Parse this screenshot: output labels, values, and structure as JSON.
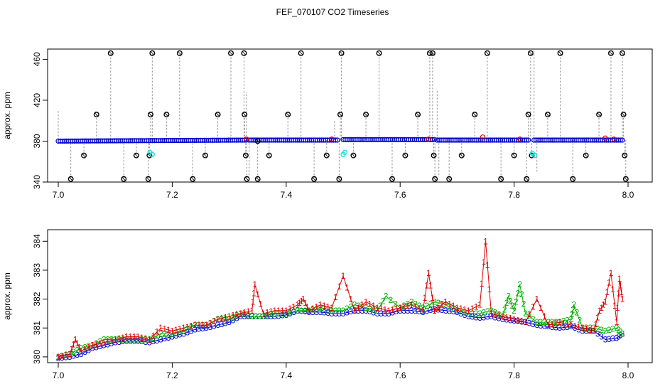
{
  "title": "FEF_070107  CO2 Timeseries",
  "colors": {
    "black": "#000000",
    "red": "#dd0000",
    "green": "#00b000",
    "blue": "#0000cc",
    "cyan": "#22dddd",
    "grey": "#888888"
  },
  "chart_data": [
    {
      "type": "scatter",
      "title": "",
      "xlabel": "",
      "ylabel": "approx. ppm",
      "xlim": [
        7.0,
        8.0
      ],
      "ylim": [
        340,
        470
      ],
      "xticks": [
        "7.0",
        "7.2",
        "7.4",
        "7.6",
        "7.8",
        "8.0"
      ],
      "yticks": [
        "340",
        "380",
        "420",
        "460"
      ],
      "baseline": [
        {
          "x0": 7.0,
          "x1": 7.33,
          "y0": 380,
          "y1": 381
        },
        {
          "x0": 7.335,
          "x1": 7.49,
          "y0": 381,
          "y1": 381
        },
        {
          "x0": 7.5,
          "x1": 7.66,
          "y0": 381.5,
          "y1": 381.5
        },
        {
          "x0": 7.665,
          "x1": 7.825,
          "y0": 381,
          "y1": 381
        },
        {
          "x0": 7.835,
          "x1": 7.99,
          "y0": 381,
          "y1": 381
        }
      ],
      "spikes": [
        {
          "x": 7.0,
          "y": 410
        },
        {
          "x": 7.33,
          "y": 428
        },
        {
          "x": 7.335,
          "y": 345
        },
        {
          "x": 7.485,
          "y": 400
        },
        {
          "x": 7.665,
          "y": 430
        },
        {
          "x": 7.668,
          "y": 345
        },
        {
          "x": 7.835,
          "y": 470
        },
        {
          "x": 7.84,
          "y": 350
        }
      ],
      "outliers": [
        {
          "x": 7.022,
          "y": 343
        },
        {
          "x": 7.045,
          "y": 366
        },
        {
          "x": 7.067,
          "y": 406
        },
        {
          "x": 7.092,
          "y": 466
        },
        {
          "x": 7.115,
          "y": 343
        },
        {
          "x": 7.137,
          "y": 366
        },
        {
          "x": 7.158,
          "y": 343
        },
        {
          "x": 7.16,
          "y": 366
        },
        {
          "x": 7.162,
          "y": 406
        },
        {
          "x": 7.165,
          "y": 466
        },
        {
          "x": 7.19,
          "y": 406
        },
        {
          "x": 7.213,
          "y": 466
        },
        {
          "x": 7.236,
          "y": 343
        },
        {
          "x": 7.258,
          "y": 366
        },
        {
          "x": 7.28,
          "y": 406
        },
        {
          "x": 7.303,
          "y": 466
        },
        {
          "x": 7.326,
          "y": 466
        },
        {
          "x": 7.327,
          "y": 406
        },
        {
          "x": 7.329,
          "y": 366
        },
        {
          "x": 7.331,
          "y": 343
        },
        {
          "x": 7.35,
          "y": 380
        },
        {
          "x": 7.35,
          "y": 343
        },
        {
          "x": 7.37,
          "y": 366
        },
        {
          "x": 7.403,
          "y": 406
        },
        {
          "x": 7.426,
          "y": 466
        },
        {
          "x": 7.449,
          "y": 343
        },
        {
          "x": 7.471,
          "y": 366
        },
        {
          "x": 7.493,
          "y": 343
        },
        {
          "x": 7.495,
          "y": 406
        },
        {
          "x": 7.497,
          "y": 466
        },
        {
          "x": 7.518,
          "y": 366
        },
        {
          "x": 7.54,
          "y": 406
        },
        {
          "x": 7.563,
          "y": 466
        },
        {
          "x": 7.586,
          "y": 343
        },
        {
          "x": 7.609,
          "y": 366
        },
        {
          "x": 7.631,
          "y": 406
        },
        {
          "x": 7.652,
          "y": 466
        },
        {
          "x": 7.657,
          "y": 466
        },
        {
          "x": 7.659,
          "y": 366
        },
        {
          "x": 7.661,
          "y": 343
        },
        {
          "x": 7.686,
          "y": 343
        },
        {
          "x": 7.708,
          "y": 366
        },
        {
          "x": 7.731,
          "y": 406
        },
        {
          "x": 7.753,
          "y": 466
        },
        {
          "x": 7.777,
          "y": 343
        },
        {
          "x": 7.8,
          "y": 366
        },
        {
          "x": 7.822,
          "y": 343
        },
        {
          "x": 7.825,
          "y": 406
        },
        {
          "x": 7.829,
          "y": 466
        },
        {
          "x": 7.831,
          "y": 366
        },
        {
          "x": 7.859,
          "y": 406
        },
        {
          "x": 7.881,
          "y": 466
        },
        {
          "x": 7.903,
          "y": 343
        },
        {
          "x": 7.926,
          "y": 366
        },
        {
          "x": 7.949,
          "y": 406
        },
        {
          "x": 7.97,
          "y": 466
        },
        {
          "x": 7.99,
          "y": 466
        },
        {
          "x": 7.992,
          "y": 406
        },
        {
          "x": 7.994,
          "y": 366
        },
        {
          "x": 7.996,
          "y": 343
        }
      ],
      "cyan_points": [
        {
          "x": 7.161,
          "y": 369
        },
        {
          "x": 7.165,
          "y": 367
        },
        {
          "x": 7.5,
          "y": 367
        },
        {
          "x": 7.503,
          "y": 369
        },
        {
          "x": 7.832,
          "y": 368
        },
        {
          "x": 7.836,
          "y": 366
        }
      ],
      "red_points": [
        {
          "x": 7.33,
          "y": 382
        },
        {
          "x": 7.48,
          "y": 382
        },
        {
          "x": 7.65,
          "y": 382
        },
        {
          "x": 7.745,
          "y": 384
        },
        {
          "x": 7.81,
          "y": 382
        },
        {
          "x": 7.96,
          "y": 383
        },
        {
          "x": 7.975,
          "y": 382
        }
      ]
    },
    {
      "type": "line",
      "title": "",
      "xlabel": "",
      "ylabel": "approx. ppm",
      "xlim": [
        7.0,
        8.0
      ],
      "ylim": [
        379.8,
        384.4
      ],
      "xticks": [
        "7.0",
        "7.2",
        "7.4",
        "7.6",
        "7.8",
        "8.0"
      ],
      "yticks": [
        "380",
        "381",
        "382",
        "383",
        "384"
      ],
      "series": [
        {
          "marker": "1",
          "color": "#dd0000",
          "x": [
            7.0,
            7.02,
            7.03,
            7.04,
            7.06,
            7.08,
            7.1,
            7.12,
            7.14,
            7.16,
            7.18,
            7.2,
            7.22,
            7.24,
            7.26,
            7.28,
            7.3,
            7.32,
            7.34,
            7.345,
            7.36,
            7.38,
            7.4,
            7.42,
            7.43,
            7.44,
            7.46,
            7.48,
            7.5,
            7.52,
            7.54,
            7.56,
            7.58,
            7.6,
            7.62,
            7.64,
            7.65,
            7.66,
            7.68,
            7.7,
            7.72,
            7.74,
            7.75,
            7.76,
            7.78,
            7.8,
            7.82,
            7.84,
            7.86,
            7.88,
            7.9,
            7.92,
            7.94,
            7.95,
            7.96,
            7.97,
            7.98,
            7.985,
            7.99
          ],
          "y": [
            380.0,
            380.1,
            380.6,
            380.2,
            380.4,
            380.5,
            380.6,
            380.7,
            380.7,
            380.6,
            381.0,
            380.9,
            381.0,
            381.1,
            381.1,
            381.3,
            381.4,
            381.5,
            381.6,
            382.5,
            381.5,
            381.6,
            381.6,
            381.8,
            382.0,
            381.6,
            381.8,
            381.7,
            382.8,
            381.6,
            381.9,
            381.7,
            381.6,
            381.7,
            381.8,
            381.6,
            382.9,
            381.6,
            381.9,
            381.7,
            381.6,
            381.8,
            384.0,
            381.5,
            381.4,
            381.3,
            381.2,
            382.0,
            381.1,
            381.2,
            381.1,
            381.0,
            380.9,
            381.6,
            381.9,
            382.9,
            381.2,
            382.7,
            382.0
          ]
        },
        {
          "marker": "2",
          "color": "#00b000",
          "x": [
            7.0,
            7.02,
            7.04,
            7.06,
            7.08,
            7.1,
            7.12,
            7.14,
            7.16,
            7.18,
            7.2,
            7.22,
            7.24,
            7.26,
            7.28,
            7.3,
            7.32,
            7.34,
            7.36,
            7.38,
            7.4,
            7.42,
            7.44,
            7.46,
            7.48,
            7.5,
            7.52,
            7.54,
            7.56,
            7.575,
            7.6,
            7.62,
            7.64,
            7.66,
            7.68,
            7.7,
            7.72,
            7.74,
            7.76,
            7.78,
            7.79,
            7.8,
            7.81,
            7.82,
            7.84,
            7.86,
            7.88,
            7.9,
            7.905,
            7.92,
            7.94,
            7.96,
            7.98,
            7.99
          ],
          "y": [
            380.0,
            380.1,
            380.3,
            380.4,
            380.6,
            380.6,
            380.6,
            380.6,
            380.6,
            380.8,
            380.8,
            380.9,
            381.1,
            381.1,
            381.3,
            381.3,
            381.5,
            381.4,
            381.4,
            381.5,
            381.5,
            381.6,
            381.6,
            381.7,
            381.6,
            381.6,
            381.8,
            381.7,
            381.6,
            382.1,
            381.7,
            381.9,
            381.7,
            381.9,
            381.8,
            381.6,
            381.5,
            381.5,
            381.6,
            381.4,
            382.1,
            381.6,
            382.5,
            381.5,
            381.2,
            381.2,
            381.2,
            381.3,
            381.8,
            381.0,
            381.0,
            380.9,
            381.0,
            380.8
          ]
        },
        {
          "marker": "3",
          "color": "#0000cc",
          "x": [
            7.0,
            7.02,
            7.04,
            7.06,
            7.08,
            7.1,
            7.12,
            7.14,
            7.16,
            7.18,
            7.2,
            7.22,
            7.24,
            7.26,
            7.28,
            7.3,
            7.32,
            7.34,
            7.36,
            7.38,
            7.4,
            7.42,
            7.44,
            7.46,
            7.48,
            7.5,
            7.52,
            7.54,
            7.56,
            7.58,
            7.6,
            7.62,
            7.64,
            7.66,
            7.68,
            7.7,
            7.72,
            7.74,
            7.76,
            7.78,
            7.8,
            7.82,
            7.84,
            7.86,
            7.88,
            7.9,
            7.92,
            7.94,
            7.96,
            7.98,
            7.99
          ],
          "y": [
            379.95,
            380.0,
            380.1,
            380.3,
            380.4,
            380.5,
            380.55,
            380.55,
            380.5,
            380.6,
            380.7,
            380.8,
            380.95,
            381.0,
            381.1,
            381.2,
            381.4,
            381.4,
            381.4,
            381.4,
            381.45,
            381.6,
            381.55,
            381.55,
            381.5,
            381.5,
            381.6,
            381.6,
            381.5,
            381.5,
            381.6,
            381.6,
            381.55,
            381.65,
            381.6,
            381.55,
            381.4,
            381.35,
            381.4,
            381.3,
            381.25,
            381.2,
            381.1,
            381.05,
            381.0,
            381.05,
            380.9,
            380.9,
            380.6,
            380.65,
            380.8
          ]
        }
      ]
    }
  ]
}
